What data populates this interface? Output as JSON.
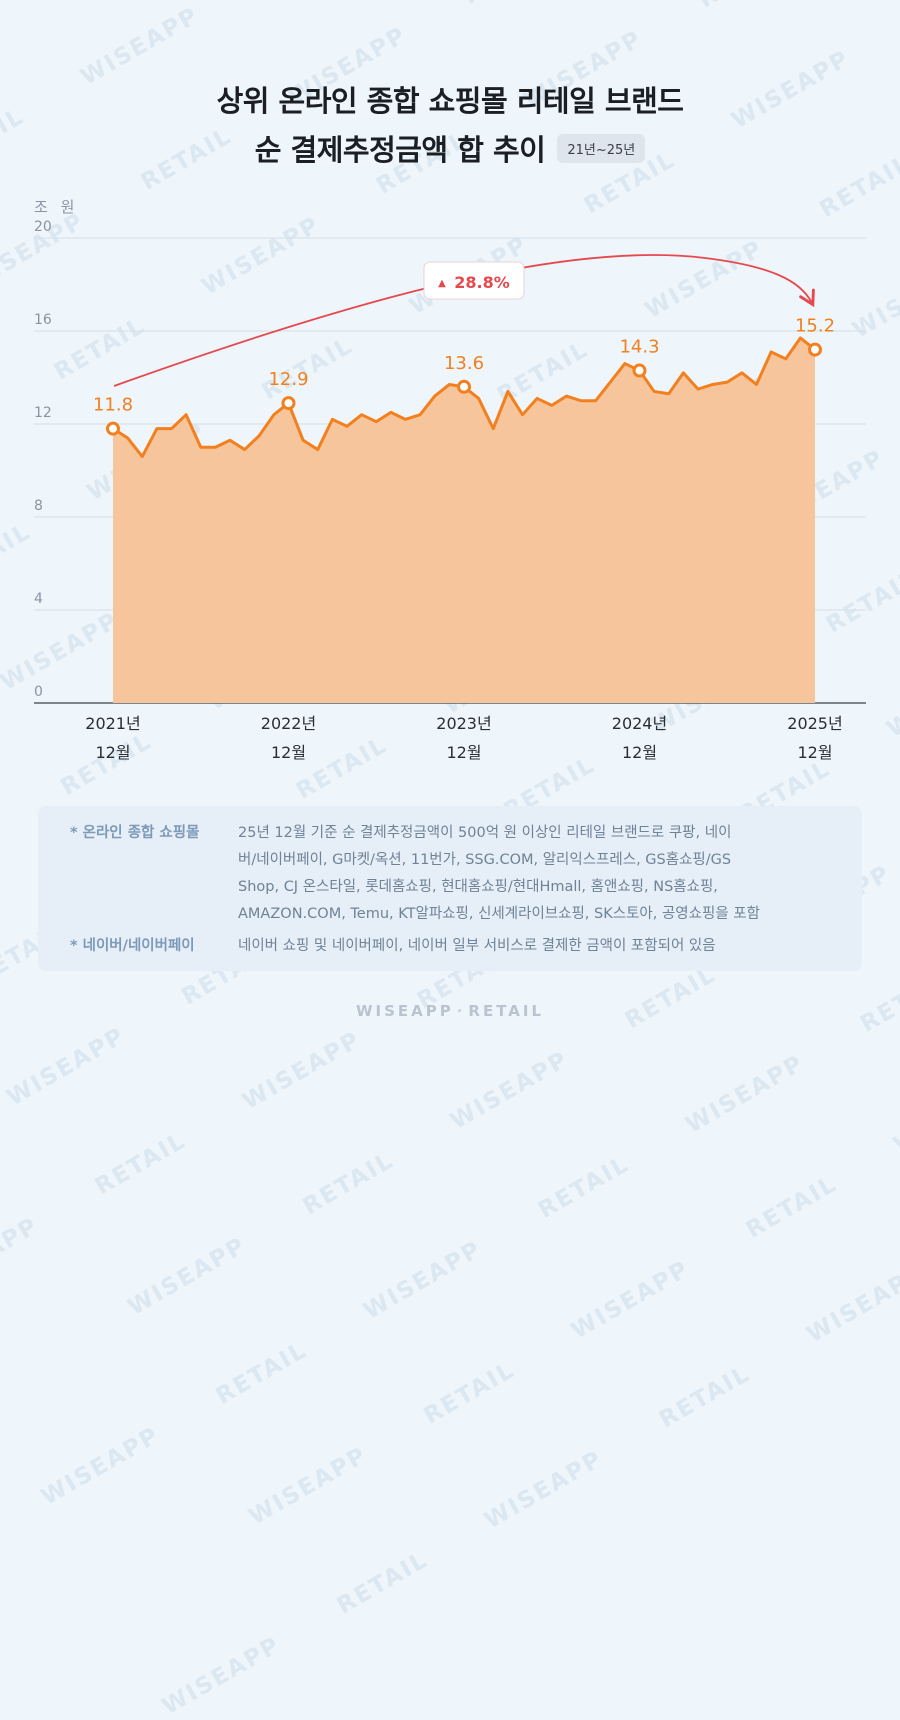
{
  "title_line1": "상위 온라인 종합 쇼핑몰 리테일 브랜드",
  "title_line2": "순 결제추정금액 합 추이",
  "title_badge": "21년~25년",
  "unit_label": "조 원",
  "watermark": [
    "WISEAPP",
    "RETAIL"
  ],
  "footer_left": "WISEAPP",
  "footer_right": "RETAIL",
  "notes": [
    {
      "key": "* 온라인 종합 쇼핑몰",
      "lines": [
        "25년 12월 기준 순 결제추정금액이 500억 원 이상인 리테일 브랜드로 쿠팡, 네이",
        "버/네이버페이, G마켓/옥션, 11번가, SSG.COM, 알리익스프레스, GS홈쇼핑/GS",
        "Shop, CJ 온스타일, 롯데홈쇼핑, 현대홈쇼핑/현대Hmall, 홈앤쇼핑, NS홈쇼핑,",
        "AMAZON.COM, Temu, KT알파쇼핑, 신세계라이브쇼핑, SK스토아, 공영쇼핑을 포함"
      ]
    },
    {
      "key": "* 네이버/네이버페이",
      "lines": [
        "네이버 쇼핑 및 네이버페이, 네이버 일부 서비스로 결제한 금액이 포함되어 있음"
      ]
    }
  ],
  "colors": {
    "line": "#f2801f",
    "fill": "#f7c59b",
    "accent": "#e5494e",
    "grid": "#d7dfe7"
  },
  "chart_data": {
    "type": "area",
    "title": "상위 온라인 종합 쇼핑몰 리테일 브랜드 순 결제추정금액 합 추이",
    "ylabel": "조 원",
    "ylim": [
      0,
      20
    ],
    "yticks": [
      0,
      4,
      8,
      12,
      16,
      20
    ],
    "x_start": "2021-12",
    "x_end": "2025-12",
    "xtick_labels": [
      {
        "index": 0,
        "year": "2021년",
        "month": "12월"
      },
      {
        "index": 12,
        "year": "2022년",
        "month": "12월"
      },
      {
        "index": 24,
        "year": "2023년",
        "month": "12월"
      },
      {
        "index": 36,
        "year": "2024년",
        "month": "12월"
      },
      {
        "index": 48,
        "year": "2025년",
        "month": "12월"
      }
    ],
    "values": [
      11.8,
      11.4,
      10.6,
      11.8,
      11.8,
      12.4,
      11.0,
      11.0,
      11.3,
      10.9,
      11.5,
      12.4,
      12.9,
      11.3,
      10.9,
      12.2,
      11.9,
      12.4,
      12.1,
      12.5,
      12.2,
      12.4,
      13.2,
      13.7,
      13.6,
      13.1,
      11.8,
      13.4,
      12.4,
      13.1,
      12.8,
      13.2,
      13.0,
      13.0,
      13.8,
      14.6,
      14.3,
      13.4,
      13.3,
      14.2,
      13.5,
      13.7,
      13.8,
      14.2,
      13.7,
      15.1,
      14.8,
      15.7,
      15.2
    ],
    "annotations": [
      {
        "index": 0,
        "label": "11.8"
      },
      {
        "index": 12,
        "label": "12.9"
      },
      {
        "index": 24,
        "label": "13.6"
      },
      {
        "index": 36,
        "label": "14.3"
      },
      {
        "index": 48,
        "label": "15.2"
      }
    ],
    "growth_label": "28.8%",
    "growth_marker": "▲"
  }
}
